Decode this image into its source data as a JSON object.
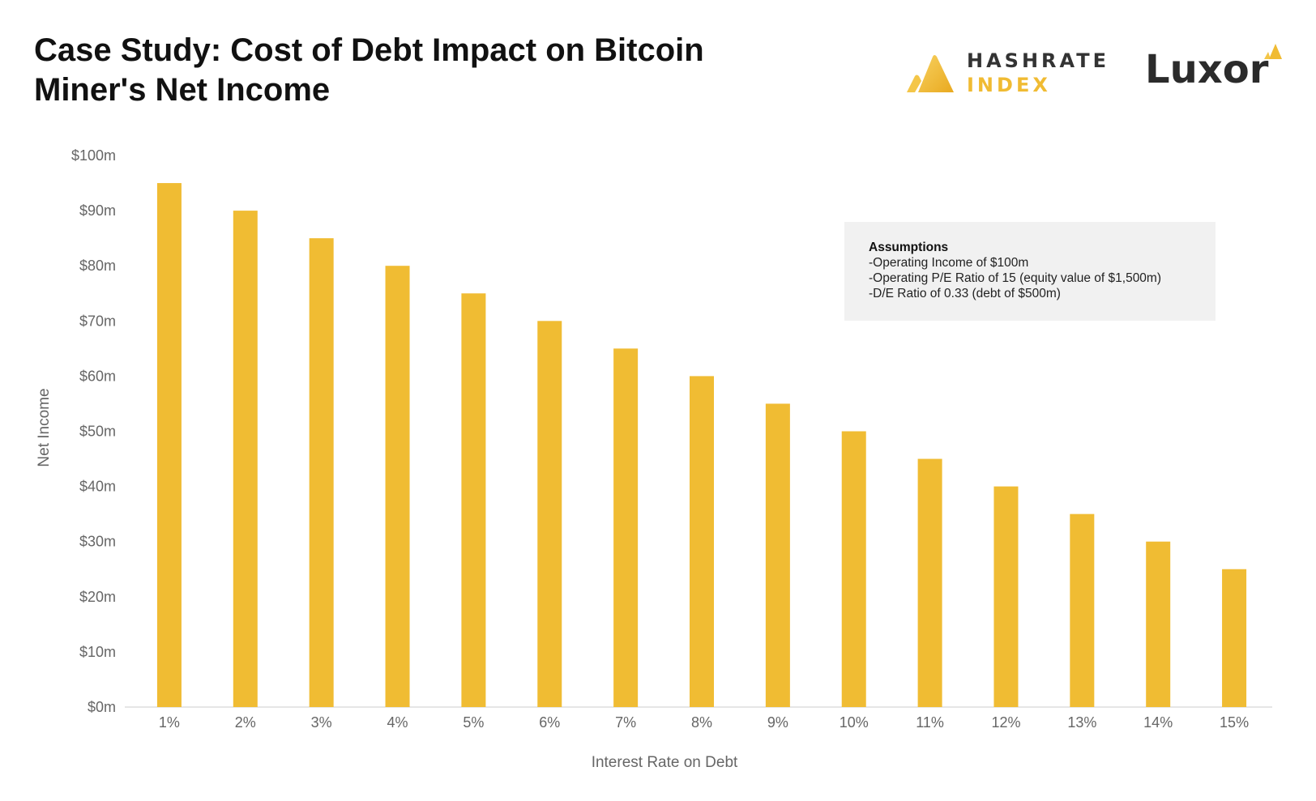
{
  "title": {
    "line1": "Case Study: Cost of Debt Impact on Bitcoin",
    "line2": "Miner's Net Income"
  },
  "logos": {
    "hashrate_line1": "HASHRATE",
    "hashrate_line2": "INDEX",
    "luxor": "Luxor"
  },
  "assumptions": {
    "title": "Assumptions",
    "lines": [
      "-Operating Income of $100m",
      "-Operating P/E Ratio of 15 (equity value of $1,500m)",
      "-D/E Ratio of 0.33 (debt of $500m)"
    ]
  },
  "colors": {
    "bar": "#f0bc33",
    "axis_text": "#666666",
    "baseline": "#dddddd",
    "brand_yellow": "#f0bb33"
  },
  "chart_data": {
    "type": "bar",
    "title": "Case Study: Cost of Debt Impact on Bitcoin Miner's Net Income",
    "xlabel": "Interest Rate on Debt",
    "ylabel": "Net Income",
    "categories": [
      "1%",
      "2%",
      "3%",
      "4%",
      "5%",
      "6%",
      "7%",
      "8%",
      "9%",
      "10%",
      "11%",
      "12%",
      "13%",
      "14%",
      "15%"
    ],
    "values": [
      95,
      90,
      85,
      80,
      75,
      70,
      65,
      60,
      55,
      50,
      45,
      40,
      35,
      30,
      25
    ],
    "value_unit": "$m",
    "ylim": [
      0,
      100
    ],
    "yticks": [
      0,
      10,
      20,
      30,
      40,
      50,
      60,
      70,
      80,
      90,
      100
    ],
    "ytick_labels": [
      "$0m",
      "$10m",
      "$20m",
      "$30m",
      "$40m",
      "$50m",
      "$60m",
      "$70m",
      "$80m",
      "$90m",
      "$100m"
    ],
    "grid": false,
    "legend": "none"
  }
}
